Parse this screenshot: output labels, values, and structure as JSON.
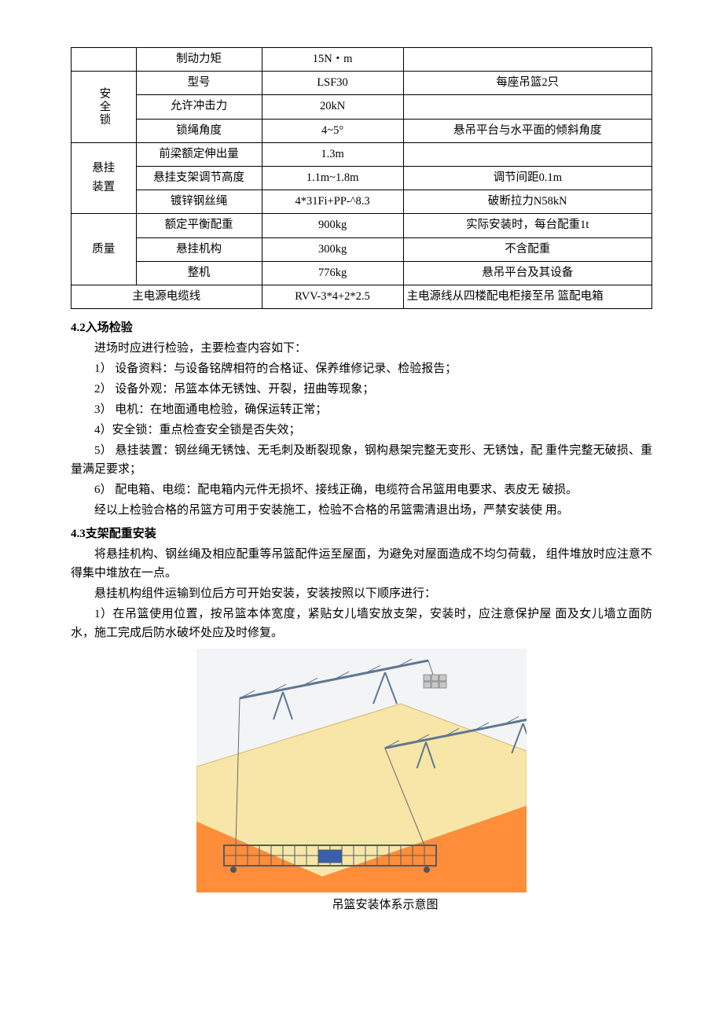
{
  "table": {
    "rows": [
      {
        "group": "",
        "name": "制动力矩",
        "value": "15N・m",
        "note": ""
      },
      {
        "group": "安全锁",
        "groupRows": 3,
        "name": "型号",
        "value": "LSF30",
        "note": "每座吊篮2只"
      },
      {
        "name": "允许冲击力",
        "value": "20kN",
        "note": ""
      },
      {
        "name": "锁绳角度",
        "value": "4~5°",
        "note": "悬吊平台与水平面的倾斜角度"
      },
      {
        "group": "悬挂装置",
        "groupRows": 3,
        "name": "前梁额定伸出量",
        "value": "1.3m",
        "note": ""
      },
      {
        "name": "悬挂支架调节高度",
        "value": "1.1m~1.8m",
        "note": "调节间距0.1m"
      },
      {
        "name": "镀锌钢丝绳",
        "value": "4*31Fi+PP-^8.3",
        "note": "破断拉力N58kN"
      },
      {
        "group": "质量",
        "groupRows": 3,
        "name": "额定平衡配重",
        "value": "900kg",
        "note": "实际安装时，每台配重1t"
      },
      {
        "name": "悬挂机构",
        "value": "300kg",
        "note": "不含配重"
      },
      {
        "name": "整机",
        "value": "776kg",
        "note": "悬吊平台及其设备"
      },
      {
        "spanFirst": true,
        "name": "主电源电缆线",
        "value": "RVV-3*4+2*2.5",
        "note": "主电源线从四楼配电柜接至吊 篮配电箱"
      }
    ]
  },
  "sections": {
    "s42": {
      "title": "4.2入场检验",
      "intro": "进场时应进行检验，主要检查内容如下：",
      "items": [
        "1）  设备资料：与设备铭牌相符的合格证、保养维修记录、检验报告；",
        "2）  设备外观：吊篮本体无锈蚀、开裂，扭曲等现象；",
        "3）  电机：在地面通电检验，确保运转正常；",
        "4）安全锁：重点检查安全锁是否失效；",
        "5）  悬挂装置：钢丝绳无锈蚀、无毛刺及断裂现象，钢构悬架完整无变形、无锈蚀，配 重件完整无破损、重量满足要求；",
        "6）  配电箱、电缆：配电箱内元件无损坏、接线正确，电缆符合吊篮用电要求、表皮无 破损。"
      ],
      "conclusion": "经以上检验合格的吊篮方可用于安装施工，检验不合格的吊篮需清退出场，严禁安装使 用。"
    },
    "s43": {
      "title": "4.3支架配重安装",
      "paras": [
        "将悬挂机构、钢丝绳及相应配重等吊篮配件运至屋面，为避免对屋面造成不均匀荷载， 组件堆放时应注意不得集中堆放在一点。",
        "悬挂机构组件运输到位后方可开始安装，安装按照以下顺序进行：",
        "1）在吊篮使用位置，按吊篮本体宽度，紧贴女儿墙安放支架，安装时，应注意保护屋 面及女儿墙立面防水，施工完成后防水破坏处应及时修复。"
      ]
    }
  },
  "diagram": {
    "caption": "吊篮安装体系示意图",
    "bg_sky": "#f2f4f6",
    "bg_wall": "#ff8d3a",
    "bg_roof": "#f7e6a8",
    "frame_stroke": "#5f7890",
    "frame_fill": "#9fb5c8",
    "weight_fill": "#c8c8c8",
    "weight_stroke": "#707070",
    "platform_fill": "#b8c8d4",
    "platform_stroke": "#4a5d6e",
    "cable": "#6a6a6a"
  }
}
